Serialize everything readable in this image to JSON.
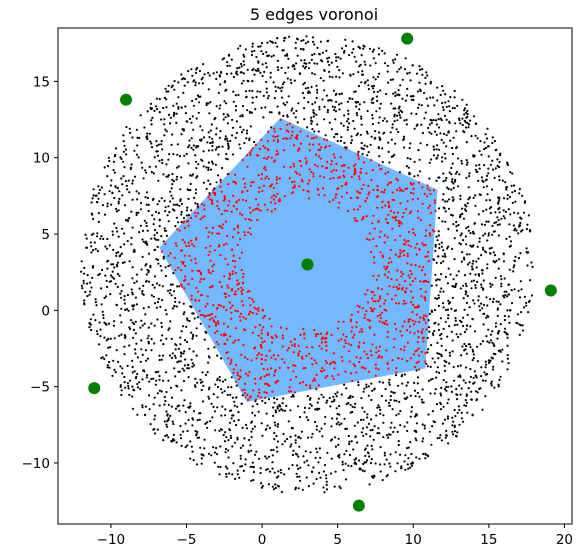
{
  "chart_data": {
    "type": "scatter",
    "title": "5 edges voronoi",
    "xlabel": "",
    "ylabel": "",
    "xlim": [
      -13.5,
      20.5
    ],
    "ylim": [
      -14.0,
      18.5
    ],
    "xticks": [
      -10,
      -5,
      0,
      5,
      10,
      15,
      20
    ],
    "yticks": [
      -10,
      -5,
      0,
      5,
      10,
      15
    ],
    "xtick_labels": [
      "−10",
      "−5",
      "0",
      "5",
      "10",
      "15",
      "20"
    ],
    "ytick_labels": [
      "−10",
      "−5",
      "0",
      "5",
      "10",
      "15"
    ],
    "grid": false,
    "colors": {
      "region": "#74b9ff",
      "inner_points": "#ff0000",
      "outer_points": "#000000",
      "sites": "#008000"
    },
    "voronoi_region": {
      "vertices": [
        [
          1.2,
          12.6
        ],
        [
          11.6,
          7.9
        ],
        [
          10.8,
          -3.8
        ],
        [
          -1.0,
          -6.0
        ],
        [
          -6.8,
          4.1
        ]
      ]
    },
    "center_site": [
      3.0,
      3.0
    ],
    "outer_sites": [
      [
        9.6,
        17.8
      ],
      [
        -9.0,
        13.8
      ],
      [
        19.1,
        1.3
      ],
      [
        -11.1,
        -5.1
      ],
      [
        6.4,
        -12.8
      ]
    ],
    "point_cloud": {
      "center": [
        3.0,
        3.0
      ],
      "inner_radius_range": [
        4.0,
        10.5
      ],
      "outer_radius_max": 15.0,
      "approx_count": 4200
    }
  }
}
